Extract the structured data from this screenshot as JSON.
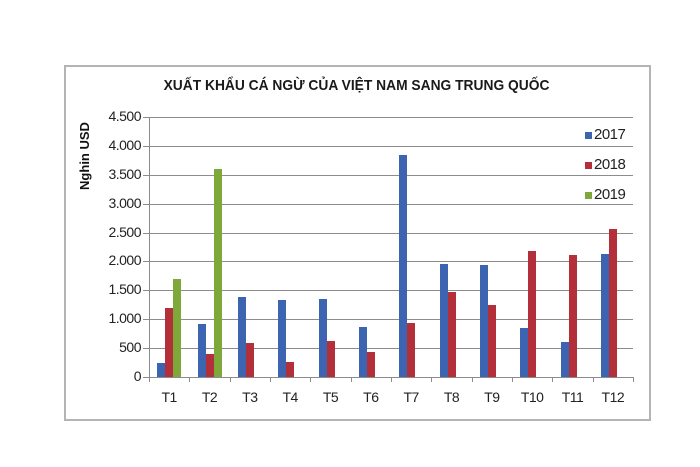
{
  "chart_data": {
    "type": "bar",
    "title": "XUẤT KHẨU CÁ NGỪ CỦA VIỆT NAM SANG TRUNG QUỐC",
    "xlabel": "",
    "ylabel": "Nghìn USD",
    "ylabel_display": "Nghin USD",
    "ylim": [
      0,
      4500
    ],
    "yticks": [
      0,
      500,
      1000,
      1500,
      2000,
      2500,
      3000,
      3500,
      4000,
      4500
    ],
    "ytick_labels": [
      "0",
      "500",
      "1.000",
      "1.500",
      "2.000",
      "2.500",
      "3.000",
      "3.500",
      "4.000",
      "4.500"
    ],
    "categories": [
      "T1",
      "T2",
      "T3",
      "T4",
      "T5",
      "T6",
      "T7",
      "T8",
      "T9",
      "T10",
      "T11",
      "T12"
    ],
    "series": [
      {
        "name": "2017",
        "color": "#3c64b0",
        "values": [
          240,
          920,
          1390,
          1330,
          1350,
          870,
          3840,
          1955,
          1935,
          850,
          605,
          2130
        ]
      },
      {
        "name": "2018",
        "color": "#b3303a",
        "values": [
          1190,
          400,
          590,
          260,
          620,
          430,
          940,
          1470,
          1245,
          2180,
          2110,
          2560
        ]
      },
      {
        "name": "2019",
        "color": "#7fa83a",
        "values": [
          1700,
          3600,
          null,
          null,
          null,
          null,
          null,
          null,
          null,
          null,
          null,
          null
        ]
      }
    ],
    "grid": true,
    "legend_position": "top-right inside"
  }
}
